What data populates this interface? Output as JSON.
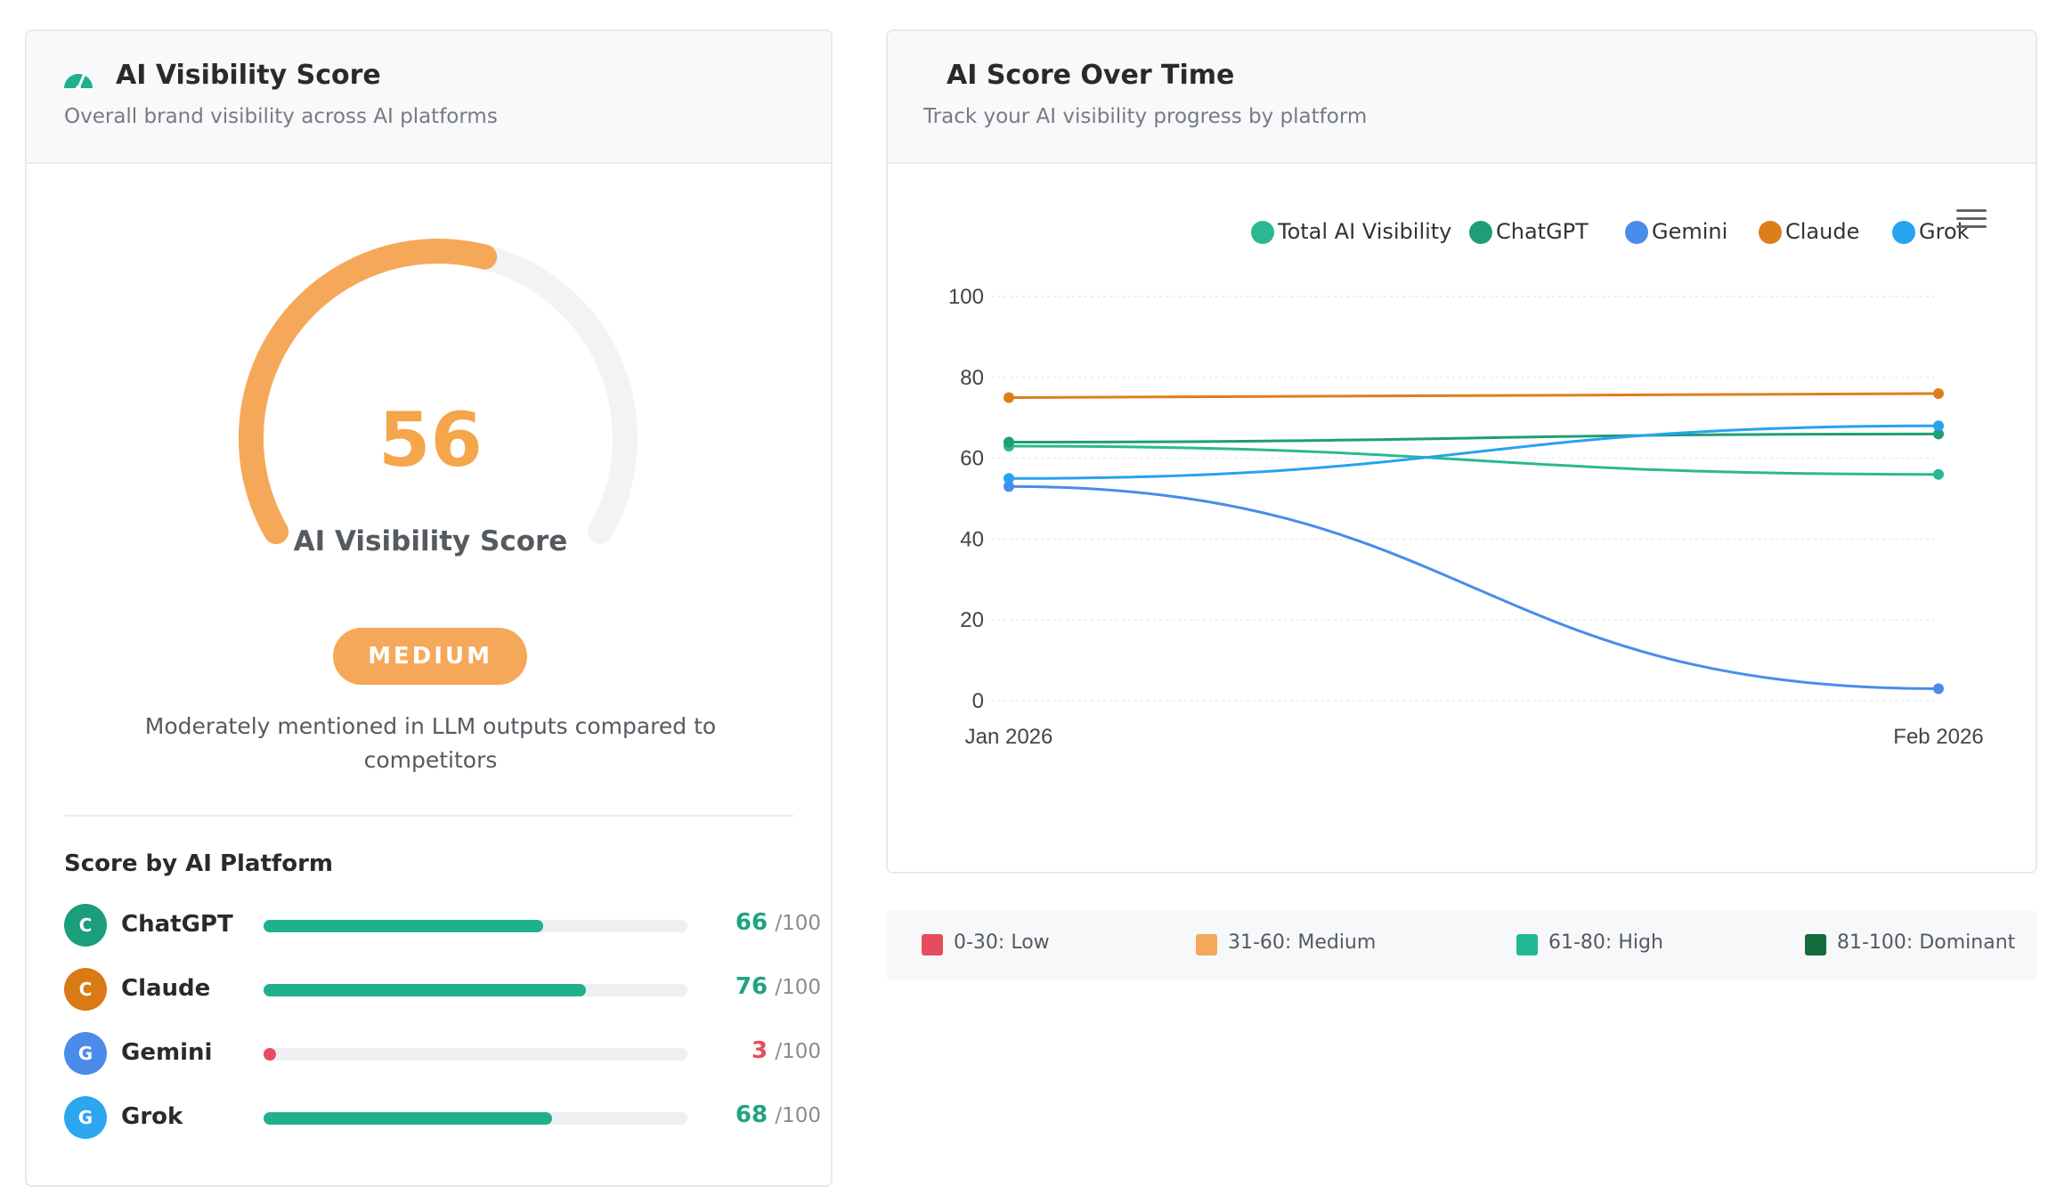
{
  "visibility_card": {
    "title": "AI Visibility Score",
    "subtitle": "Overall brand visibility across AI platforms",
    "icon": "speedometer-icon",
    "score": 56,
    "score_fraction": 0.56,
    "score_label": "AI Visibility Score",
    "level": "MEDIUM",
    "description": "Moderately mentioned in LLM outputs compared to competitors",
    "accent_color": "#f5a54a",
    "platforms_title": "Score by AI Platform",
    "platforms": [
      {
        "initial": "C",
        "name": "ChatGPT",
        "score": "66",
        "max": "/100",
        "fraction": 0.66,
        "avatar_color": "#1a9e7b",
        "bar_color": "#1fb18d",
        "score_color": "#1fa383"
      },
      {
        "initial": "C",
        "name": "Claude",
        "score": "76",
        "max": "/100",
        "fraction": 0.76,
        "avatar_color": "#d97a14",
        "bar_color": "#1fb18d",
        "score_color": "#1fa383"
      },
      {
        "initial": "G",
        "name": "Gemini",
        "score": "3",
        "max": "/100",
        "fraction": 0.03,
        "avatar_color": "#4b8bea",
        "bar_color": "#e54d5e",
        "score_color": "#e54d5e"
      },
      {
        "initial": "G",
        "name": "Grok",
        "score": "68",
        "max": "/100",
        "fraction": 0.68,
        "avatar_color": "#2ba6ef",
        "bar_color": "#1fb18d",
        "score_color": "#1fa383"
      }
    ]
  },
  "time_card": {
    "title": "AI Score Over Time",
    "subtitle": "Track your AI visibility progress by platform",
    "menu_icon": "hamburger-menu-icon"
  },
  "chart_data": {
    "type": "line",
    "title": "",
    "xlabel": "",
    "ylabel": "",
    "x": [
      "Jan 2026",
      "Feb 2026"
    ],
    "ylim": [
      0,
      100
    ],
    "yticks": [
      "0",
      "20",
      "40",
      "60",
      "80",
      "100"
    ],
    "grid": true,
    "legend_position": "top-right",
    "series": [
      {
        "name": "Total AI Visibility",
        "values": [
          63,
          56
        ],
        "color": "#2bb893"
      },
      {
        "name": "ChatGPT",
        "values": [
          64,
          66
        ],
        "color": "#1e9e76"
      },
      {
        "name": "Gemini",
        "values": [
          53,
          3
        ],
        "color": "#4a8cea"
      },
      {
        "name": "Claude",
        "values": [
          75,
          76
        ],
        "color": "#dc7f1b"
      },
      {
        "name": "Grok",
        "values": [
          55,
          68
        ],
        "color": "#27a3f0"
      }
    ]
  },
  "ranges": [
    {
      "label": "0-30: Low",
      "color": "#e54d5e"
    },
    {
      "label": "31-60: Medium",
      "color": "#f5a859"
    },
    {
      "label": "61-80: High",
      "color": "#22b894"
    },
    {
      "label": "81-100: Dominant",
      "color": "#136b3c"
    }
  ]
}
